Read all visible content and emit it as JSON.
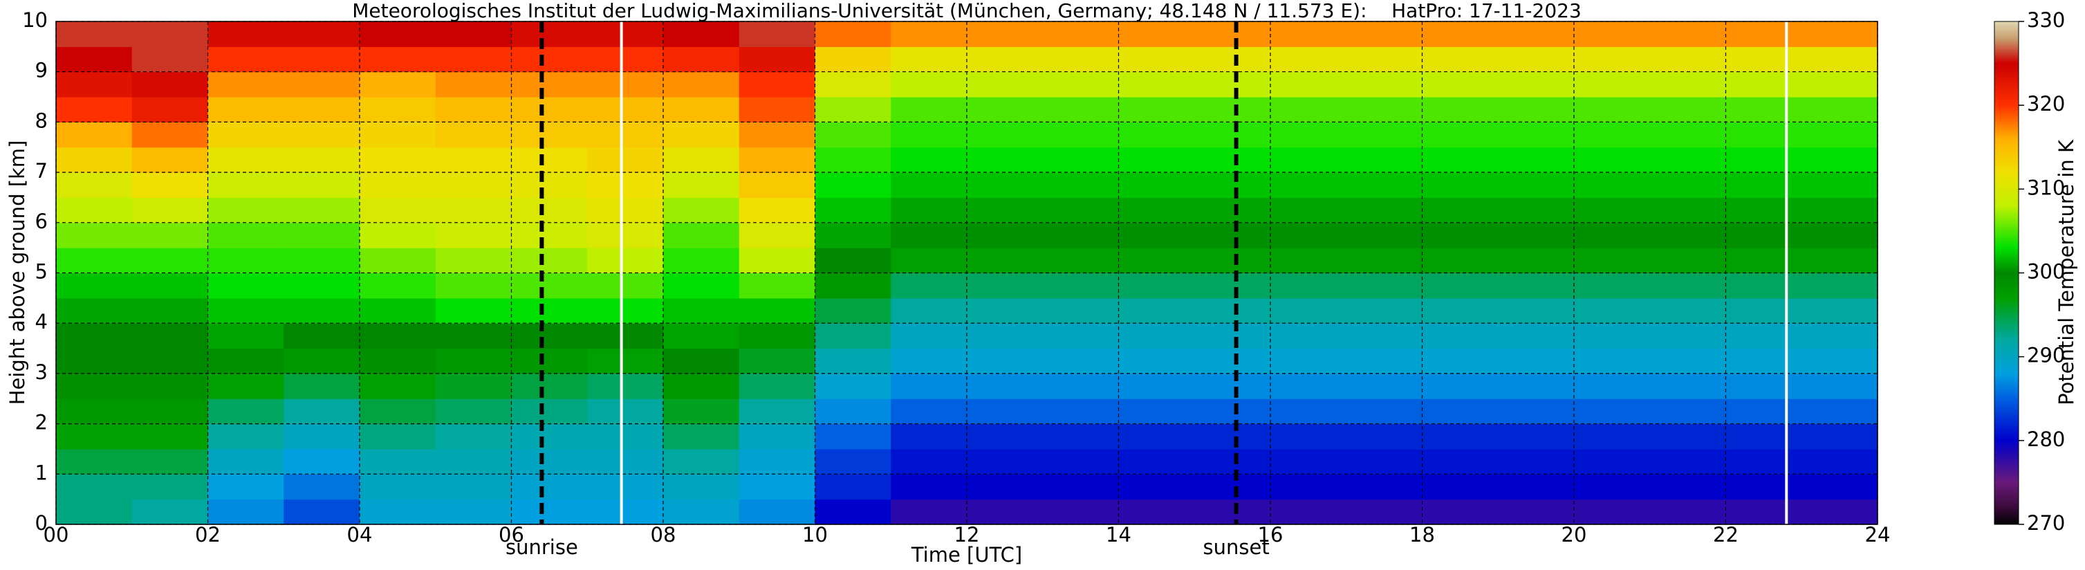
{
  "chart_data": {
    "type": "heatmap",
    "title": "Meteorologisches Institut der Ludwig-Maximilians-Universität (München, Germany; 48.148 N / 11.573 E):    HatPro: 17-11-2023",
    "xlabel": "Time [UTC]",
    "ylabel": "Height above ground [km]",
    "colorbar_label": "Potential Temperature in K",
    "x_edges": [
      0,
      1,
      2,
      3,
      4,
      5,
      6,
      7,
      8,
      9,
      10,
      11,
      12,
      13,
      14,
      15,
      16,
      17,
      18,
      19,
      20,
      21,
      22,
      23,
      24
    ],
    "y_edges": [
      0,
      0.5,
      1,
      1.5,
      2,
      2.5,
      3,
      3.5,
      4,
      4.5,
      5,
      5.5,
      6,
      6.5,
      7,
      7.5,
      8,
      8.5,
      9,
      9.5,
      10
    ],
    "z": [
      [
        293,
        293,
        295,
        297,
        298,
        299,
        300,
        300,
        301,
        302,
        304,
        306,
        308,
        310,
        313,
        316,
        320,
        323,
        325,
        326
      ],
      [
        292,
        293,
        295,
        297,
        298,
        299,
        300,
        300,
        301,
        302,
        304,
        306,
        309,
        312,
        315,
        318,
        322,
        324,
        326,
        326
      ],
      [
        287,
        288,
        290,
        292,
        294,
        297,
        299,
        301,
        302,
        303,
        304,
        305,
        307,
        309,
        311,
        313,
        315,
        317,
        320,
        324
      ],
      [
        284,
        286,
        288,
        290,
        292,
        295,
        298,
        300,
        302,
        303,
        304,
        305,
        307,
        309,
        311,
        313,
        315,
        317,
        320,
        324
      ],
      [
        289,
        290,
        291,
        293,
        295,
        297,
        299,
        300,
        302,
        304,
        306,
        308,
        310,
        311,
        312,
        313,
        314,
        316,
        320,
        325
      ],
      [
        289,
        290,
        291,
        292,
        294,
        296,
        298,
        300,
        303,
        305,
        307,
        309,
        310,
        311,
        312,
        314,
        315,
        317,
        320,
        325
      ],
      [
        288,
        289,
        290,
        291,
        293,
        295,
        298,
        300,
        303,
        305,
        307,
        309,
        310,
        311,
        312,
        314,
        315,
        317,
        320,
        324
      ],
      [
        288,
        289,
        290,
        291,
        292,
        294,
        297,
        300,
        303,
        305,
        308,
        310,
        311,
        312,
        313,
        314,
        315,
        317,
        320,
        324
      ],
      [
        289,
        290,
        292,
        294,
        296,
        298,
        300,
        301,
        302,
        303,
        304,
        305,
        307,
        309,
        311,
        313,
        315,
        317,
        321,
        325
      ],
      [
        287,
        288,
        289,
        290,
        292,
        294,
        296,
        298,
        302,
        305,
        308,
        310,
        312,
        314,
        316,
        317,
        319,
        320,
        323,
        326
      ],
      [
        280,
        282,
        283,
        285,
        287,
        289,
        291,
        293,
        295,
        298,
        300,
        301,
        302,
        303,
        304,
        305,
        307,
        310,
        313,
        318
      ],
      [
        278,
        280,
        281,
        282,
        285,
        287,
        289,
        290,
        292,
        294,
        297,
        299,
        301,
        302,
        303,
        304,
        305,
        308,
        311,
        317
      ],
      [
        278,
        280,
        281,
        282,
        285,
        287,
        289,
        290,
        292,
        294,
        297,
        299,
        301,
        302,
        303,
        304,
        305,
        308,
        311,
        317
      ],
      [
        278,
        280,
        281,
        282,
        285,
        287,
        289,
        290,
        292,
        294,
        297,
        299,
        301,
        302,
        303,
        304,
        305,
        308,
        311,
        317
      ],
      [
        278,
        280,
        281,
        282,
        285,
        287,
        289,
        290,
        292,
        294,
        297,
        299,
        301,
        302,
        303,
        304,
        305,
        308,
        311,
        317
      ],
      [
        278,
        280,
        281,
        282,
        285,
        287,
        289,
        290,
        292,
        294,
        297,
        299,
        301,
        302,
        303,
        304,
        305,
        308,
        311,
        317
      ],
      [
        278,
        280,
        281,
        282,
        285,
        287,
        289,
        290,
        292,
        294,
        297,
        299,
        301,
        302,
        303,
        304,
        305,
        308,
        311,
        317
      ],
      [
        278,
        280,
        281,
        282,
        285,
        287,
        289,
        290,
        292,
        294,
        297,
        299,
        301,
        302,
        303,
        304,
        305,
        308,
        311,
        317
      ],
      [
        278,
        280,
        281,
        282,
        285,
        287,
        289,
        290,
        292,
        294,
        297,
        299,
        301,
        302,
        303,
        304,
        305,
        308,
        311,
        317
      ],
      [
        278,
        280,
        281,
        282,
        285,
        287,
        289,
        290,
        292,
        294,
        297,
        299,
        301,
        302,
        303,
        304,
        305,
        308,
        311,
        317
      ],
      [
        278,
        280,
        281,
        282,
        285,
        287,
        289,
        290,
        292,
        294,
        297,
        299,
        301,
        302,
        303,
        304,
        305,
        308,
        311,
        317
      ],
      [
        278,
        280,
        281,
        282,
        285,
        287,
        289,
        290,
        292,
        294,
        297,
        299,
        301,
        302,
        303,
        304,
        305,
        308,
        311,
        317
      ],
      [
        278,
        280,
        281,
        282,
        285,
        287,
        289,
        290,
        292,
        294,
        297,
        299,
        301,
        302,
        303,
        304,
        305,
        308,
        311,
        317
      ],
      [
        278,
        280,
        281,
        282,
        285,
        287,
        289,
        290,
        292,
        294,
        297,
        299,
        301,
        302,
        303,
        304,
        305,
        308,
        311,
        317
      ]
    ],
    "xlim": [
      0,
      24
    ],
    "ylim": [
      0,
      10
    ],
    "zlim": [
      270,
      330
    ],
    "xticks": [
      {
        "value": 0,
        "label": "00"
      },
      {
        "value": 2,
        "label": "02"
      },
      {
        "value": 4,
        "label": "04"
      },
      {
        "value": 6,
        "label": "06"
      },
      {
        "value": 8,
        "label": "08"
      },
      {
        "value": 10,
        "label": "10"
      },
      {
        "value": 12,
        "label": "12"
      },
      {
        "value": 14,
        "label": "14"
      },
      {
        "value": 16,
        "label": "16"
      },
      {
        "value": 18,
        "label": "18"
      },
      {
        "value": 20,
        "label": "20"
      },
      {
        "value": 22,
        "label": "22"
      },
      {
        "value": 24,
        "label": "24"
      }
    ],
    "yticks": [
      0,
      1,
      2,
      3,
      4,
      5,
      6,
      7,
      8,
      9,
      10
    ],
    "zticks": [
      270,
      280,
      290,
      300,
      310,
      320,
      330
    ],
    "grid": true,
    "colormap": [
      [
        270,
        "#000000"
      ],
      [
        272,
        "#3a0a3a"
      ],
      [
        275,
        "#6a1a7a"
      ],
      [
        280,
        "#0000cc"
      ],
      [
        285,
        "#0060e0"
      ],
      [
        288,
        "#00a0e0"
      ],
      [
        292,
        "#00a8a0"
      ],
      [
        297,
        "#00a000"
      ],
      [
        300,
        "#008800"
      ],
      [
        303,
        "#00e000"
      ],
      [
        308,
        "#c0f000"
      ],
      [
        312,
        "#f0e000"
      ],
      [
        316,
        "#ffb000"
      ],
      [
        320,
        "#ff3000"
      ],
      [
        325,
        "#cc0000"
      ],
      [
        328,
        "#c8a070"
      ],
      [
        330,
        "#e0d8b0"
      ]
    ],
    "events": [
      {
        "x": 6.4,
        "label": "sunrise"
      },
      {
        "x": 15.55,
        "label": "sunset"
      }
    ],
    "white_lines": [
      7.45,
      22.8
    ]
  }
}
